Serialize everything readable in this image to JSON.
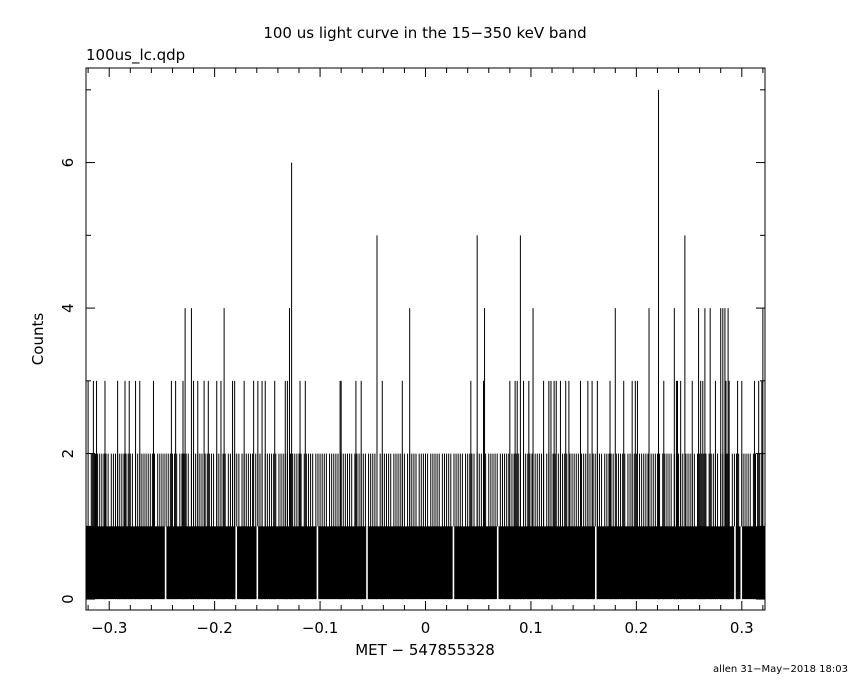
{
  "chart_data": {
    "type": "bar",
    "title": "100 us light curve in the 15−350 keV band",
    "subtitle": "100us_lc.qdp",
    "xlabel": "MET − 547855328",
    "ylabel": "Counts",
    "footer": "allen 31−May−2018 18:03",
    "xlim": [
      -0.322,
      0.322
    ],
    "ylim": [
      -0.15,
      7.3
    ],
    "bin_width": 0.0001,
    "x_ticks": [
      -0.3,
      -0.2,
      -0.1,
      0,
      0.1,
      0.2,
      0.3
    ],
    "x_tick_labels": [
      "−0.3",
      "−0.2",
      "−0.1",
      "0",
      "0.1",
      "0.2",
      "0.3"
    ],
    "y_ticks": [
      0,
      2,
      4,
      6
    ],
    "y_tick_labels": [
      "0",
      "2",
      "4",
      "6"
    ],
    "baseline_counts": 1,
    "zero_bins": [
      -0.2465,
      -0.1795,
      -0.1595,
      -0.1025,
      -0.0555,
      0.0265,
      0.0685,
      0.1615,
      0.2935,
      0.2995
    ],
    "peaks": {
      "2": [
        -0.317,
        -0.316,
        -0.314,
        -0.313,
        -0.311,
        -0.309,
        -0.307,
        -0.305,
        -0.303,
        -0.301,
        -0.298,
        -0.296,
        -0.294,
        -0.292,
        -0.29,
        -0.288,
        -0.286,
        -0.284,
        -0.282,
        -0.28,
        -0.278,
        -0.275,
        -0.273,
        -0.271,
        -0.269,
        -0.267,
        -0.265,
        -0.263,
        -0.261,
        -0.259,
        -0.257,
        -0.254,
        -0.252,
        -0.25,
        -0.248,
        -0.246,
        -0.244,
        -0.242,
        -0.24,
        -0.238,
        -0.236,
        -0.233,
        -0.231,
        -0.229,
        -0.227,
        -0.225,
        -0.222,
        -0.22,
        -0.218,
        -0.216,
        -0.214,
        -0.212,
        -0.209,
        -0.207,
        -0.205,
        -0.203,
        -0.201,
        -0.198,
        -0.196,
        -0.194,
        -0.192,
        -0.19,
        -0.187,
        -0.185,
        -0.183,
        -0.181,
        -0.179,
        -0.177,
        -0.174,
        -0.172,
        -0.17,
        -0.168,
        -0.166,
        -0.164,
        -0.161,
        -0.159,
        -0.157,
        -0.155,
        -0.152,
        -0.15,
        -0.148,
        -0.146,
        -0.144,
        -0.142,
        -0.139,
        -0.137,
        -0.135,
        -0.133,
        -0.131,
        -0.128,
        -0.126,
        -0.124,
        -0.122,
        -0.12,
        -0.118,
        -0.115,
        -0.113,
        -0.111,
        -0.109,
        -0.107,
        -0.104,
        -0.102,
        -0.1,
        -0.098,
        -0.096,
        -0.094,
        -0.091,
        -0.089,
        -0.087,
        -0.085,
        -0.083,
        -0.08,
        -0.078,
        -0.076,
        -0.074,
        -0.072,
        -0.07,
        -0.067,
        -0.065,
        -0.063,
        -0.061,
        -0.059,
        -0.057,
        -0.054,
        -0.052,
        -0.05,
        -0.048,
        -0.046,
        -0.043,
        -0.041,
        -0.039,
        -0.037,
        -0.035,
        -0.033,
        -0.03,
        -0.028,
        -0.026,
        -0.024,
        -0.022,
        -0.02,
        -0.017,
        -0.015,
        -0.013,
        -0.011,
        -0.009,
        -0.006,
        -0.004,
        -0.002,
        0.0,
        0.002,
        0.005,
        0.007,
        0.009,
        0.011,
        0.013,
        0.016,
        0.018,
        0.02,
        0.022,
        0.024,
        0.027,
        0.029,
        0.031,
        0.033,
        0.035,
        0.038,
        0.04,
        0.042,
        0.044,
        0.046,
        0.049,
        0.051,
        0.053,
        0.055,
        0.057,
        0.06,
        0.062,
        0.064,
        0.066,
        0.068,
        0.071,
        0.073,
        0.075,
        0.077,
        0.079,
        0.082,
        0.084,
        0.086,
        0.088,
        0.09,
        0.093,
        0.095,
        0.097,
        0.099,
        0.101,
        0.104,
        0.106,
        0.108,
        0.11,
        0.112,
        0.115,
        0.117,
        0.119,
        0.121,
        0.123,
        0.126,
        0.128,
        0.13,
        0.132,
        0.134,
        0.137,
        0.139,
        0.141,
        0.143,
        0.145,
        0.148,
        0.15,
        0.152,
        0.154,
        0.156,
        0.159,
        0.161,
        0.163,
        0.165,
        0.167,
        0.17,
        0.172,
        0.174,
        0.176,
        0.178,
        0.181,
        0.183,
        0.185,
        0.187,
        0.189,
        0.192,
        0.194,
        0.196,
        0.198,
        0.2,
        0.203,
        0.205,
        0.207,
        0.209,
        0.211,
        0.214,
        0.216,
        0.218,
        0.22,
        0.222,
        0.225,
        0.227,
        0.229,
        0.231,
        0.233,
        0.236,
        0.238,
        0.24,
        0.242,
        0.244,
        0.247,
        0.249,
        0.251,
        0.253,
        0.255,
        0.258,
        0.26,
        0.262,
        0.264,
        0.266,
        0.269,
        0.271,
        0.273,
        0.275,
        0.277,
        0.28,
        0.282,
        0.284,
        0.286,
        0.288,
        0.291,
        0.293,
        0.295,
        0.297,
        0.3,
        0.302,
        0.304,
        0.306,
        0.308,
        0.311,
        0.313,
        0.315,
        0.317,
        0.319
      ],
      "3": [
        -0.32,
        -0.315,
        -0.312,
        -0.304,
        -0.292,
        -0.285,
        -0.281,
        -0.275,
        -0.271,
        -0.258,
        -0.241,
        -0.237,
        -0.23,
        -0.22,
        -0.216,
        -0.21,
        -0.206,
        -0.198,
        -0.194,
        -0.183,
        -0.181,
        -0.172,
        -0.163,
        -0.159,
        -0.155,
        -0.152,
        -0.143,
        -0.133,
        -0.131,
        -0.119,
        -0.114,
        -0.081,
        -0.08,
        -0.066,
        -0.061,
        -0.041,
        -0.022,
        0.043,
        0.055,
        0.08,
        0.085,
        0.087,
        0.093,
        0.098,
        0.112,
        0.117,
        0.119,
        0.122,
        0.124,
        0.128,
        0.133,
        0.136,
        0.147,
        0.154,
        0.158,
        0.163,
        0.175,
        0.188,
        0.196,
        0.199,
        0.201,
        0.221,
        0.226,
        0.238,
        0.239,
        0.242,
        0.253,
        0.261,
        0.263,
        0.275,
        0.285,
        0.288,
        0.296,
        0.3,
        0.312,
        0.316,
        0.319
      ],
      "4": [
        -0.228,
        -0.222,
        -0.191,
        -0.129,
        -0.015,
        0.056,
        0.102,
        0.18,
        0.212,
        0.236,
        0.259,
        0.265,
        0.27,
        0.28,
        0.282,
        0.284,
        0.287,
        0.32
      ],
      "5": [
        -0.046,
        0.049,
        0.09,
        0.246
      ],
      "6": [
        -0.127
      ],
      "7": [
        0.221
      ]
    }
  }
}
